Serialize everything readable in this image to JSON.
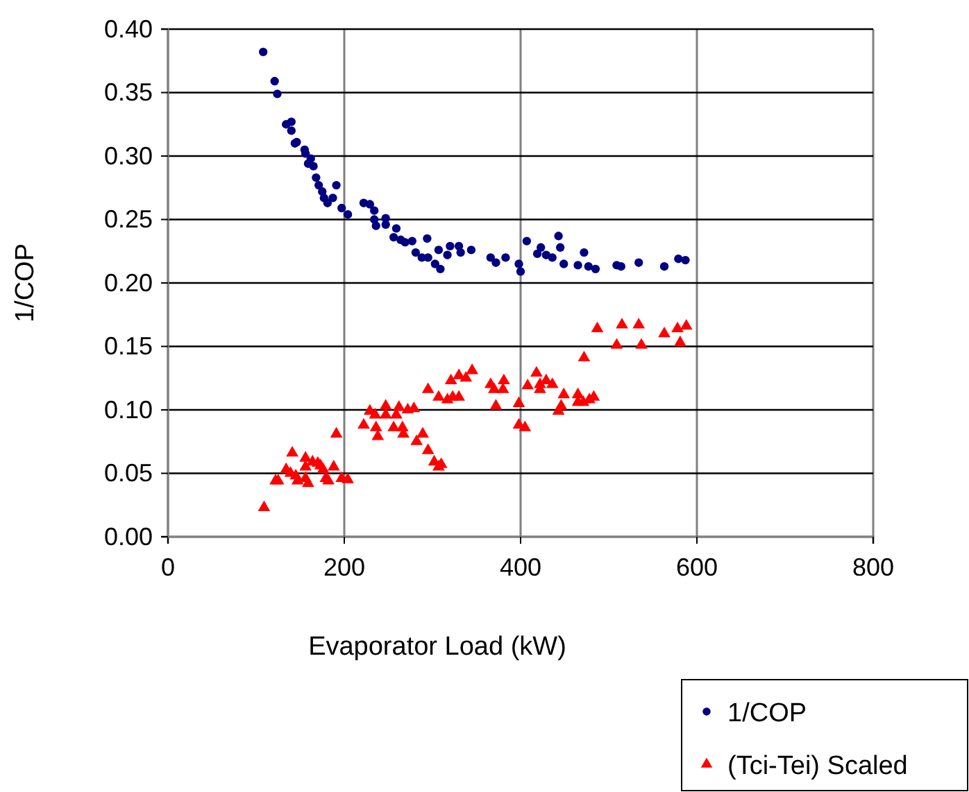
{
  "chart_data": {
    "type": "scatter",
    "xlabel": "Evaporator Load (kW)",
    "ylabel": "1/COP",
    "xlim": [
      0,
      800
    ],
    "xticks": [
      0,
      200,
      400,
      600,
      800
    ],
    "ylim": [
      0,
      0.4
    ],
    "yticks": [
      {
        "value": 0,
        "label": "0.00"
      },
      {
        "value": 0.05,
        "label": "0.05"
      },
      {
        "value": 0.1,
        "label": "0.10"
      },
      {
        "value": 0.15,
        "label": "0.15"
      },
      {
        "value": 0.2,
        "label": "0.20"
      },
      {
        "value": 0.25,
        "label": "0.25"
      },
      {
        "value": 0.3,
        "label": "0.30"
      },
      {
        "value": 0.35,
        "label": "0.35"
      },
      {
        "value": 0.4,
        "label": "0.40"
      }
    ],
    "grid": true,
    "legend": "bottom right",
    "series": [
      {
        "name": "1/COP",
        "color": "#000080",
        "marker": "circle",
        "x": [
          108,
          121,
          124,
          134,
          140,
          140,
          144,
          146,
          155,
          156,
          162,
          159,
          165,
          168,
          171,
          175,
          177,
          181,
          187,
          191,
          197,
          204,
          222,
          229,
          234,
          234,
          236,
          247,
          247,
          259,
          256,
          264,
          269,
          277,
          281,
          294,
          288,
          295,
          303,
          309,
          307,
          317,
          320,
          330,
          332,
          344,
          366,
          372,
          383,
          398,
          400,
          407,
          419,
          423,
          429,
          436,
          443,
          445,
          449,
          465,
          472,
          477,
          485,
          509,
          514,
          534,
          563,
          579,
          587
        ],
        "values": [
          0.382,
          0.359,
          0.349,
          0.325,
          0.327,
          0.32,
          0.31,
          0.311,
          0.305,
          0.302,
          0.298,
          0.294,
          0.292,
          0.283,
          0.277,
          0.272,
          0.267,
          0.263,
          0.267,
          0.277,
          0.259,
          0.254,
          0.263,
          0.262,
          0.257,
          0.25,
          0.245,
          0.251,
          0.246,
          0.243,
          0.236,
          0.234,
          0.232,
          0.233,
          0.224,
          0.235,
          0.22,
          0.22,
          0.215,
          0.211,
          0.226,
          0.222,
          0.229,
          0.229,
          0.224,
          0.226,
          0.22,
          0.216,
          0.22,
          0.215,
          0.209,
          0.233,
          0.223,
          0.228,
          0.222,
          0.22,
          0.237,
          0.228,
          0.215,
          0.214,
          0.224,
          0.213,
          0.211,
          0.214,
          0.213,
          0.216,
          0.213,
          0.219,
          0.218
        ]
      },
      {
        "name": "(Tci-Tei) Scaled",
        "color": "#ff0000",
        "marker": "triangle",
        "x": [
          109,
          122,
          125,
          134,
          141,
          139,
          145,
          147,
          156,
          156,
          159,
          156,
          164,
          170,
          173,
          176,
          179,
          182,
          188,
          191,
          197,
          204,
          222,
          229,
          235,
          236,
          238,
          247,
          247,
          256,
          259,
          262,
          266,
          267,
          272,
          279,
          282,
          289,
          295,
          295,
          302,
          307,
          310,
          307,
          317,
          321,
          323,
          330,
          330,
          338,
          345,
          366,
          370,
          372,
          381,
          380,
          398,
          398,
          405,
          408,
          418,
          422,
          422,
          429,
          436,
          443,
          446,
          449,
          465,
          465,
          471,
          472,
          478,
          483,
          487,
          509,
          515,
          534,
          537,
          563,
          578,
          581,
          588
        ],
        "values": [
          0.023,
          0.044,
          0.044,
          0.053,
          0.066,
          0.05,
          0.048,
          0.044,
          0.062,
          0.055,
          0.042,
          0.046,
          0.059,
          0.058,
          0.056,
          0.053,
          0.046,
          0.044,
          0.055,
          0.081,
          0.046,
          0.045,
          0.088,
          0.099,
          0.096,
          0.086,
          0.079,
          0.103,
          0.096,
          0.086,
          0.096,
          0.102,
          0.086,
          0.081,
          0.1,
          0.101,
          0.075,
          0.081,
          0.116,
          0.068,
          0.059,
          0.055,
          0.057,
          0.11,
          0.108,
          0.123,
          0.11,
          0.11,
          0.127,
          0.125,
          0.131,
          0.12,
          0.116,
          0.103,
          0.123,
          0.116,
          0.105,
          0.088,
          0.086,
          0.119,
          0.129,
          0.12,
          0.116,
          0.123,
          0.12,
          0.099,
          0.103,
          0.112,
          0.112,
          0.106,
          0.106,
          0.141,
          0.108,
          0.11,
          0.164,
          0.151,
          0.167,
          0.167,
          0.151,
          0.16,
          0.164,
          0.153,
          0.166
        ]
      }
    ]
  }
}
